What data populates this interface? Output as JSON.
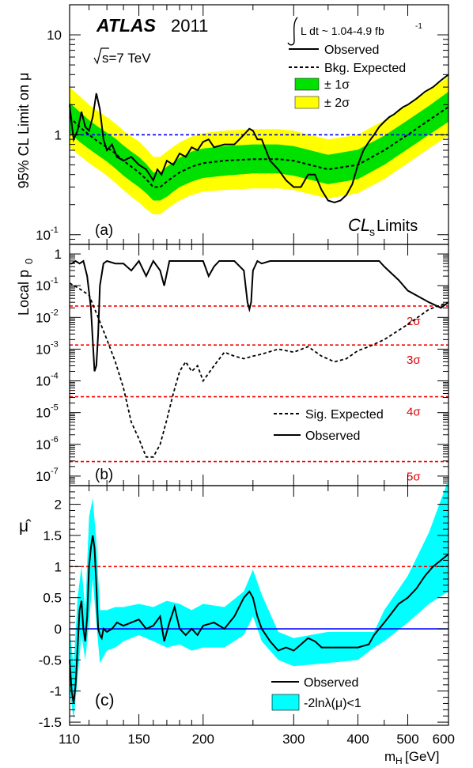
{
  "figure": {
    "experiment": "ATLAS",
    "year": "2011",
    "luminosity_label": "L dt ~ 1.04-4.9 fb",
    "luminosity_exp": "-1",
    "energy_label": "s=7 TeV",
    "xlabel_main": "m",
    "xlabel_sub": "H",
    "xlabel_unit": "[GeV]",
    "panel_tags": [
      "(a)",
      "(b)",
      "(c)"
    ],
    "cls_label_main": "CL",
    "cls_label_sub": "s",
    "cls_label_rest": " Limits"
  },
  "colors": {
    "band1": "#00e100",
    "band2": "#ffff00",
    "band_mu": "#00ffff",
    "reference_blue": "#0000ff",
    "significance_red": "#ff0000"
  },
  "chart_data": [
    {
      "type": "line",
      "panel": "a",
      "ylabel": "95% CL Limit on μ",
      "yscale": "log",
      "xscale": "log",
      "xlim": [
        110,
        600
      ],
      "ylim": [
        0.08,
        20
      ],
      "x_ticks": [
        110,
        150,
        200,
        300,
        400,
        500,
        600
      ],
      "y_tick_labels": [
        "10^-1",
        "1",
        "10"
      ],
      "reference_line": {
        "y": 1,
        "color": "blue",
        "style": "dashed"
      },
      "legend": [
        "Observed",
        "Bkg. Expected",
        "± 1σ",
        "± 2σ"
      ],
      "expected": {
        "x": [
          110,
          115,
          120,
          125,
          130,
          135,
          140,
          145,
          150,
          155,
          160,
          165,
          170,
          175,
          180,
          190,
          200,
          220,
          250,
          280,
          300,
          350,
          400,
          450,
          500,
          550,
          600
        ],
        "y": [
          1.5,
          1.2,
          1.0,
          0.85,
          0.75,
          0.65,
          0.55,
          0.48,
          0.42,
          0.36,
          0.3,
          0.3,
          0.34,
          0.38,
          0.42,
          0.48,
          0.52,
          0.55,
          0.57,
          0.57,
          0.55,
          0.45,
          0.5,
          0.7,
          1.0,
          1.4,
          1.9
        ]
      },
      "band1": {
        "low": [
          1.05,
          0.85,
          0.72,
          0.62,
          0.54,
          0.46,
          0.39,
          0.34,
          0.3,
          0.26,
          0.22,
          0.22,
          0.24,
          0.27,
          0.3,
          0.34,
          0.37,
          0.39,
          0.41,
          0.41,
          0.39,
          0.32,
          0.36,
          0.5,
          0.72,
          1.0,
          1.35
        ],
        "high": [
          2.1,
          1.7,
          1.4,
          1.2,
          1.05,
          0.92,
          0.78,
          0.68,
          0.6,
          0.51,
          0.42,
          0.42,
          0.48,
          0.53,
          0.59,
          0.68,
          0.73,
          0.77,
          0.8,
          0.8,
          0.77,
          0.63,
          0.71,
          0.98,
          1.4,
          1.95,
          2.7
        ]
      },
      "band2": {
        "low": [
          0.75,
          0.62,
          0.52,
          0.45,
          0.39,
          0.33,
          0.28,
          0.24,
          0.21,
          0.18,
          0.16,
          0.16,
          0.18,
          0.2,
          0.22,
          0.25,
          0.27,
          0.28,
          0.29,
          0.29,
          0.28,
          0.23,
          0.26,
          0.36,
          0.52,
          0.73,
          0.98
        ],
        "high": [
          3.0,
          2.45,
          2.0,
          1.72,
          1.5,
          1.3,
          1.1,
          0.96,
          0.86,
          0.73,
          0.6,
          0.6,
          0.68,
          0.76,
          0.84,
          0.96,
          1.04,
          1.1,
          1.14,
          1.14,
          1.1,
          0.9,
          1.0,
          1.4,
          2.0,
          2.8,
          3.8
        ]
      },
      "observed": {
        "x": [
          110,
          111,
          112,
          114,
          116,
          118,
          120,
          122,
          124,
          126,
          128,
          130,
          133,
          136,
          140,
          145,
          150,
          155,
          160,
          163,
          166,
          170,
          175,
          180,
          185,
          190,
          195,
          200,
          205,
          210,
          220,
          230,
          240,
          246,
          250,
          255,
          260,
          270,
          280,
          290,
          300,
          310,
          320,
          330,
          340,
          350,
          360,
          370,
          380,
          390,
          400,
          410,
          420,
          430,
          440,
          450,
          460,
          470,
          480,
          490,
          500,
          520,
          540,
          560,
          580,
          600
        ],
        "y": [
          2.0,
          1.3,
          0.9,
          1.1,
          1.7,
          1.2,
          1.1,
          1.5,
          2.6,
          1.8,
          0.9,
          0.7,
          0.8,
          0.6,
          0.55,
          0.6,
          0.5,
          0.45,
          0.35,
          0.45,
          0.4,
          0.55,
          0.5,
          0.65,
          0.6,
          0.75,
          0.7,
          0.85,
          0.9,
          0.75,
          0.8,
          0.8,
          1.0,
          1.15,
          1.1,
          0.9,
          0.9,
          0.55,
          0.45,
          0.35,
          0.3,
          0.3,
          0.4,
          0.4,
          0.28,
          0.22,
          0.21,
          0.22,
          0.25,
          0.32,
          0.5,
          0.7,
          0.85,
          1.0,
          1.2,
          1.35,
          1.5,
          1.6,
          1.75,
          1.9,
          2.0,
          2.3,
          2.7,
          3.0,
          3.5,
          4.0
        ]
      }
    },
    {
      "type": "line",
      "panel": "b",
      "ylabel": "Local p",
      "ylabel_sub": "0",
      "yscale": "log",
      "xscale": "log",
      "xlim": [
        110,
        600
      ],
      "ylim": [
        5e-08,
        2
      ],
      "y_tick_labels": [
        "10^-7",
        "10^-6",
        "10^-5",
        "10^-4",
        "10^-3",
        "10^-2",
        "10^-1",
        "1"
      ],
      "significance_lines": [
        {
          "label": "2σ",
          "p": 0.0228
        },
        {
          "label": "3σ",
          "p": 0.00135
        },
        {
          "label": "4σ",
          "p": 3.17e-05
        },
        {
          "label": "5σ",
          "p": 2.87e-07
        }
      ],
      "legend": [
        "Sig. Expected",
        "Observed"
      ],
      "expected": {
        "x": [
          110,
          115,
          120,
          125,
          130,
          135,
          140,
          145,
          150,
          155,
          160,
          165,
          170,
          175,
          180,
          185,
          190,
          195,
          200,
          210,
          220,
          230,
          240,
          250,
          260,
          280,
          300,
          320,
          340,
          360,
          380,
          400,
          420,
          450,
          500,
          550,
          600
        ],
        "y": [
          0.12,
          0.08,
          0.05,
          0.01,
          0.002,
          0.0004,
          6e-05,
          5e-06,
          1.5e-06,
          4e-07,
          4e-07,
          1e-06,
          6e-06,
          4e-05,
          0.0002,
          0.0004,
          0.0002,
          0.0003,
          0.0001,
          0.0003,
          0.0008,
          0.0006,
          0.0005,
          0.0006,
          0.0007,
          0.001,
          0.0008,
          0.0012,
          0.0006,
          0.0004,
          0.0005,
          0.0009,
          0.0012,
          0.002,
          0.006,
          0.018,
          0.03
        ]
      },
      "observed": {
        "x": [
          110,
          111,
          113,
          115,
          117,
          119,
          121,
          122,
          123,
          124,
          125,
          126,
          128,
          130,
          135,
          140,
          145,
          150,
          155,
          160,
          165,
          168,
          172,
          180,
          190,
          200,
          205,
          210,
          215,
          220,
          230,
          240,
          244,
          246,
          248,
          250,
          255,
          260,
          270,
          280,
          300,
          350,
          400,
          440,
          450,
          480,
          500,
          550,
          580,
          600
        ],
        "y": [
          0.5,
          0.5,
          0.6,
          0.5,
          0.6,
          0.2,
          0.02,
          0.002,
          0.0002,
          0.0003,
          0.003,
          0.1,
          0.5,
          0.6,
          0.5,
          0.5,
          0.3,
          0.6,
          0.2,
          0.6,
          0.3,
          0.1,
          0.6,
          0.6,
          0.6,
          0.6,
          0.2,
          0.4,
          0.6,
          0.6,
          0.6,
          0.3,
          0.03,
          0.018,
          0.03,
          0.3,
          0.6,
          0.5,
          0.6,
          0.6,
          0.6,
          0.6,
          0.6,
          0.6,
          0.4,
          0.15,
          0.07,
          0.03,
          0.02,
          0.03
        ]
      }
    },
    {
      "type": "line",
      "panel": "c",
      "ylabel": "μ̂",
      "yscale": "linear",
      "xscale": "log",
      "xlim": [
        110,
        600
      ],
      "ylim": [
        -1.55,
        2.3
      ],
      "y_ticks": [
        -1.5,
        -1,
        -0.5,
        0,
        0.5,
        1,
        1.5,
        2
      ],
      "reference_lines": [
        {
          "y": 0,
          "color": "blue"
        },
        {
          "y": 1,
          "color": "red",
          "style": "dashed"
        }
      ],
      "legend": [
        "Observed",
        "-2lnλ(μ)<1"
      ],
      "observed": {
        "x": [
          110,
          111,
          112,
          113,
          114,
          115,
          116,
          117,
          118,
          119,
          120,
          121,
          122,
          123,
          124,
          125,
          126,
          127,
          128,
          130,
          133,
          136,
          140,
          145,
          150,
          155,
          160,
          165,
          168,
          172,
          176,
          180,
          185,
          190,
          195,
          200,
          210,
          220,
          230,
          240,
          246,
          250,
          255,
          260,
          270,
          280,
          290,
          300,
          310,
          320,
          330,
          340,
          350,
          370,
          400,
          420,
          430,
          440,
          450,
          460,
          470,
          480,
          490,
          500,
          520,
          540,
          560,
          580,
          600
        ],
        "y": [
          -0.5,
          -1.0,
          -1.2,
          -0.9,
          -0.3,
          0.3,
          0.45,
          0.0,
          -0.2,
          0.2,
          1.0,
          1.3,
          1.5,
          1.3,
          0.7,
          0.0,
          -0.1,
          -0.15,
          0.0,
          -0.05,
          0.0,
          0.1,
          0.05,
          0.1,
          0.15,
          0.0,
          0.05,
          0.2,
          -0.2,
          0.1,
          0.35,
          0.0,
          -0.1,
          0.0,
          -0.1,
          0.05,
          0.1,
          0.0,
          0.2,
          0.5,
          0.6,
          0.5,
          0.2,
          0.0,
          -0.2,
          -0.35,
          -0.3,
          -0.35,
          -0.25,
          -0.15,
          -0.2,
          -0.3,
          -0.3,
          -0.3,
          -0.3,
          -0.25,
          -0.1,
          0.0,
          0.1,
          0.2,
          0.3,
          0.4,
          0.45,
          0.5,
          0.65,
          0.85,
          1.0,
          1.1,
          1.2
        ]
      },
      "band": {
        "x": [
          110,
          112,
          114,
          116,
          118,
          120,
          122,
          124,
          126,
          128,
          130,
          135,
          140,
          150,
          160,
          170,
          180,
          190,
          200,
          220,
          240,
          250,
          260,
          280,
          300,
          350,
          400,
          430,
          450,
          500,
          550,
          600
        ],
        "low": [
          -1.0,
          -1.45,
          -0.8,
          -0.1,
          -0.5,
          0.1,
          0.8,
          0.1,
          -0.55,
          -0.45,
          -0.35,
          -0.3,
          -0.2,
          -0.1,
          -0.2,
          -0.3,
          -0.25,
          -0.35,
          -0.3,
          -0.3,
          -0.1,
          0.2,
          -0.2,
          -0.5,
          -0.6,
          -0.55,
          -0.5,
          -0.3,
          -0.2,
          0.1,
          0.4,
          0.6
        ],
        "high": [
          0.0,
          -0.6,
          0.5,
          1.0,
          0.3,
          1.8,
          2.1,
          1.4,
          0.3,
          0.3,
          0.3,
          0.35,
          0.35,
          0.4,
          0.35,
          0.45,
          0.4,
          0.3,
          0.4,
          0.35,
          0.6,
          0.95,
          0.55,
          -0.05,
          -0.15,
          -0.05,
          -0.05,
          -0.05,
          0.3,
          0.85,
          1.55,
          2.4
        ]
      }
    }
  ]
}
